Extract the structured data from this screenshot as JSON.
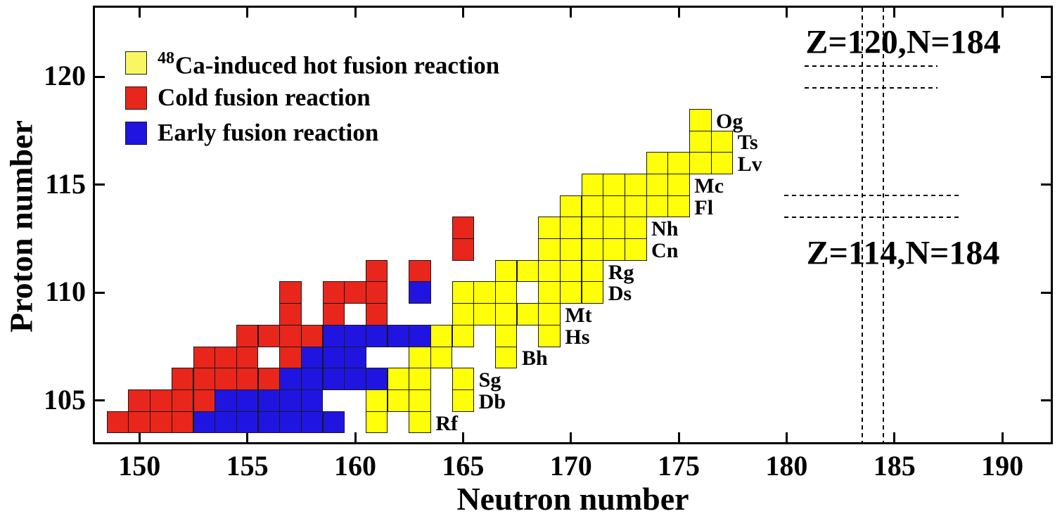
{
  "chart_data": {
    "type": "heatmap",
    "description": "Chart of synthesized superheavy nuclides: proton number vs neutron number, cells colored by synthesis reaction type",
    "x_axis": {
      "label": "Neutron number",
      "ticks": [
        150,
        155,
        160,
        165,
        170,
        175,
        180,
        185,
        190
      ],
      "range": [
        147.84,
        192.35
      ],
      "grid": false
    },
    "y_axis": {
      "label": "Proton number",
      "ticks": [
        105,
        110,
        115,
        120
      ],
      "range": [
        102.97,
        123.3
      ],
      "grid": false
    },
    "legend": [
      {
        "key": "hot",
        "label_sup": "48",
        "label": "Ca-induced hot fusion reaction",
        "color": "#f8f763"
      },
      {
        "key": "cold",
        "label_sup": "",
        "label": "Cold fusion reaction",
        "color": "#e8261b"
      },
      {
        "key": "early",
        "label_sup": "",
        "label": "Early fusion reaction",
        "color": "#2015e0"
      }
    ],
    "cell_colors": {
      "hot": "#ffff0a",
      "cold": "#e8261b",
      "early": "#2015e0"
    },
    "rows": [
      {
        "z": 104,
        "element": "Rf",
        "cold": [
          149,
          150,
          151,
          152
        ],
        "early": [
          153,
          154,
          155,
          156,
          157,
          158,
          159
        ],
        "hot": [
          161,
          163
        ]
      },
      {
        "z": 105,
        "element": "Db",
        "cold": [
          150,
          151,
          152,
          153
        ],
        "early": [
          154,
          155,
          156,
          157,
          158
        ],
        "hot": [
          161,
          162,
          163,
          165
        ]
      },
      {
        "z": 106,
        "element": "Sg",
        "cold": [
          152,
          153,
          154,
          155,
          156
        ],
        "early": [
          157,
          158,
          159,
          160,
          161
        ],
        "hot": [
          162,
          163,
          165
        ]
      },
      {
        "z": 107,
        "element": "Bh",
        "cold": [
          153,
          154,
          155,
          157
        ],
        "early": [
          158,
          159,
          160
        ],
        "hot": [
          163,
          164,
          167
        ]
      },
      {
        "z": 108,
        "element": "Hs",
        "cold": [
          155,
          156,
          157,
          158
        ],
        "early": [
          159,
          160,
          161,
          162,
          163
        ],
        "hot": [
          164,
          165,
          167,
          169
        ]
      },
      {
        "z": 109,
        "element": "Mt",
        "cold": [
          157,
          159,
          161
        ],
        "early": [],
        "hot": [
          165,
          166,
          167,
          168,
          169
        ]
      },
      {
        "z": 110,
        "element": "Ds",
        "cold": [
          157,
          159,
          160,
          161
        ],
        "early": [
          163
        ],
        "hot": [
          165,
          166,
          167,
          169,
          170,
          171
        ]
      },
      {
        "z": 111,
        "element": "Rg",
        "cold": [
          161,
          163
        ],
        "early": [],
        "hot": [
          167,
          168,
          169,
          170,
          171
        ]
      },
      {
        "z": 112,
        "element": "Cn",
        "cold": [
          165
        ],
        "early": [],
        "hot": [
          169,
          170,
          171,
          172,
          173
        ]
      },
      {
        "z": 113,
        "element": "Nh",
        "cold": [
          165
        ],
        "early": [],
        "hot": [
          169,
          170,
          171,
          172,
          173
        ]
      },
      {
        "z": 114,
        "element": "Fl",
        "cold": [],
        "early": [],
        "hot": [
          170,
          171,
          172,
          173,
          174,
          175
        ]
      },
      {
        "z": 115,
        "element": "Mc",
        "cold": [],
        "early": [],
        "hot": [
          171,
          172,
          173,
          174,
          175
        ]
      },
      {
        "z": 116,
        "element": "Lv",
        "cold": [],
        "early": [],
        "hot": [
          174,
          175,
          176,
          177
        ]
      },
      {
        "z": 117,
        "element": "Ts",
        "cold": [],
        "early": [],
        "hot": [
          176,
          177
        ]
      },
      {
        "z": 118,
        "element": "Og",
        "cold": [],
        "early": [],
        "hot": [
          176
        ]
      }
    ],
    "annotations": [
      {
        "text": "Z=120,N=184",
        "n": 185.4,
        "z": 121.62
      },
      {
        "text": "Z=114,N=184",
        "n": 185.4,
        "z": 111.82
      }
    ],
    "reference_lines": [
      {
        "orient": "v",
        "n": 183.5
      },
      {
        "orient": "v",
        "n": 184.5
      },
      {
        "orient": "h",
        "z": 120.5,
        "n_from": 180.85,
        "n_to": 187.0
      },
      {
        "orient": "h",
        "z": 119.5,
        "n_from": 180.85,
        "n_to": 187.0
      },
      {
        "orient": "h",
        "z": 114.5,
        "n_from": 179.9,
        "n_to": 188.0
      },
      {
        "orient": "h",
        "z": 113.5,
        "n_from": 179.9,
        "n_to": 188.0
      }
    ]
  }
}
